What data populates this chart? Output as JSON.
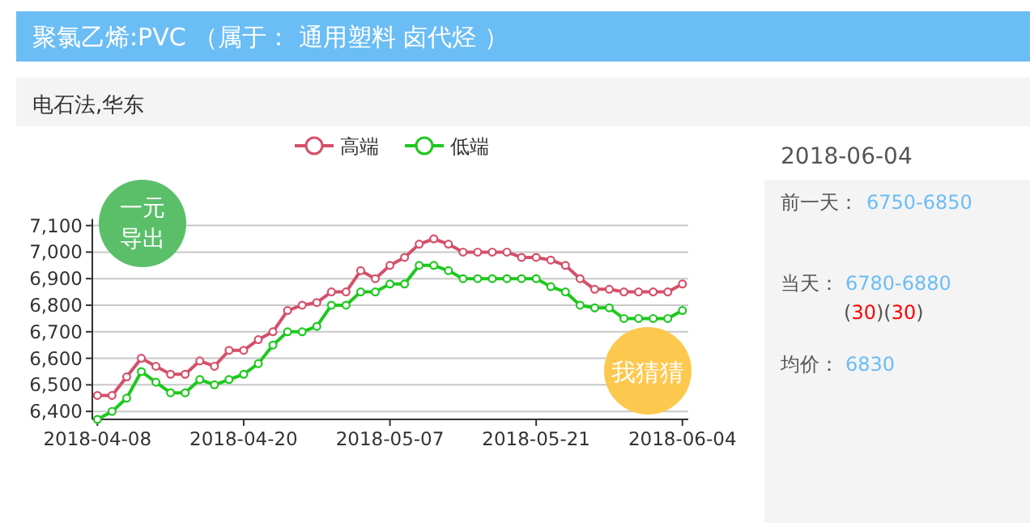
{
  "chart_data": {
    "type": "line",
    "title": "聚氯乙烯:PVC （属于： 通用塑料 卤代烃 ）",
    "subtitle": "电石法,华东",
    "categories": [
      "2018-04-08",
      null,
      null,
      null,
      null,
      null,
      null,
      null,
      null,
      null,
      "2018-04-20",
      null,
      null,
      null,
      null,
      null,
      null,
      null,
      null,
      null,
      "2018-05-07",
      null,
      null,
      null,
      null,
      null,
      null,
      null,
      null,
      null,
      "2018-05-21",
      null,
      null,
      null,
      null,
      null,
      null,
      null,
      null,
      null,
      "2018-06-04"
    ],
    "series": [
      {
        "name": "高端",
        "color": "#d4506a",
        "values": [
          6460,
          6460,
          6530,
          6600,
          6570,
          6540,
          6540,
          6590,
          6570,
          6630,
          6630,
          6670,
          6700,
          6780,
          6800,
          6810,
          6850,
          6850,
          6930,
          6900,
          6950,
          6980,
          7030,
          7050,
          7030,
          7000,
          7000,
          7000,
          7000,
          6980,
          6980,
          6970,
          6950,
          6900,
          6860,
          6860,
          6850,
          6850,
          6850,
          6850,
          6880
        ]
      },
      {
        "name": "低端",
        "color": "#1ec81e",
        "values": [
          6370,
          6400,
          6450,
          6550,
          6510,
          6470,
          6470,
          6520,
          6500,
          6520,
          6540,
          6580,
          6650,
          6700,
          6700,
          6720,
          6800,
          6800,
          6850,
          6850,
          6880,
          6880,
          6950,
          6950,
          6930,
          6900,
          6900,
          6900,
          6900,
          6900,
          6900,
          6870,
          6850,
          6800,
          6790,
          6790,
          6750,
          6750,
          6750,
          6750,
          6780
        ]
      }
    ],
    "ylim": [
      6370,
      7100
    ],
    "yticks": [
      {
        "value": 6400,
        "label": "6,400"
      },
      {
        "value": 6500,
        "label": "6,500"
      },
      {
        "value": 6600,
        "label": "6,600"
      },
      {
        "value": 6700,
        "label": "6,700"
      },
      {
        "value": 6800,
        "label": "6,800"
      },
      {
        "value": 6900,
        "label": "6,900"
      },
      {
        "value": 7000,
        "label": "7,000"
      },
      {
        "value": 7100,
        "label": "7,100"
      }
    ],
    "grid": "y",
    "legend": "top",
    "marker": "circle",
    "line_style": "solid",
    "annotations": [
      "一元导出",
      "我猜猜",
      "2018-06-04",
      "前一天：",
      "6750-6850",
      "当天：",
      "6780-6880",
      "(30)(30)",
      "均价：",
      "6830"
    ]
  }
}
